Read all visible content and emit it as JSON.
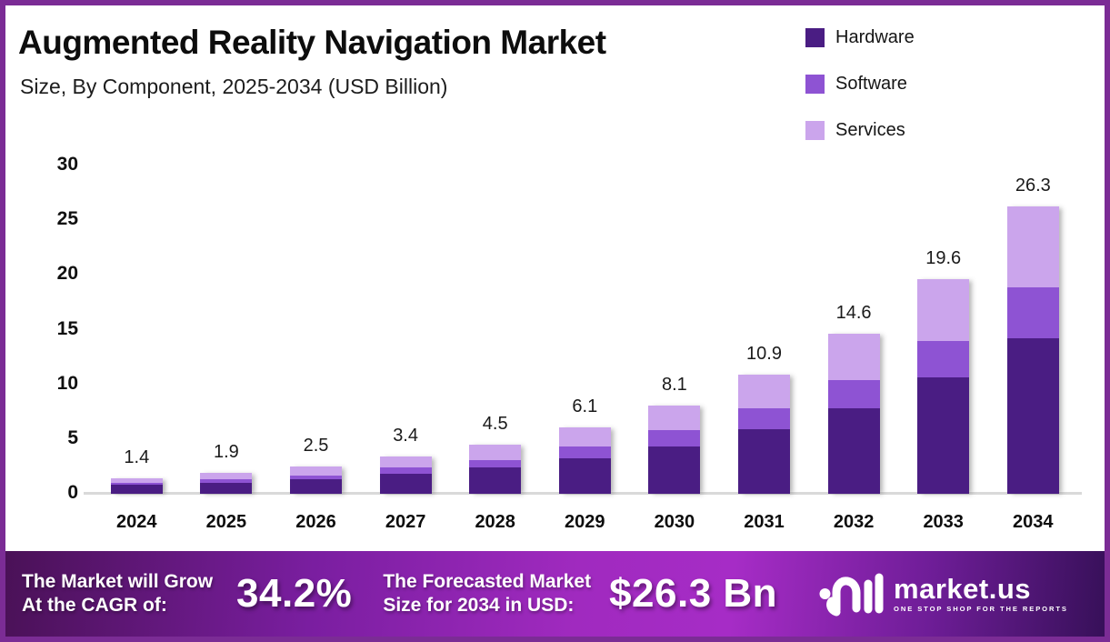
{
  "header": {
    "title": "Augmented Reality Navigation Market",
    "subtitle": "Size, By Component, 2025-2034 (USD Billion)"
  },
  "legend": [
    {
      "label": "Hardware",
      "color": "#4A1D83"
    },
    {
      "label": "Software",
      "color": "#8E53D3"
    },
    {
      "label": "Services",
      "color": "#CBA5EC"
    }
  ],
  "chart_data": {
    "type": "bar",
    "stacked": true,
    "title": "Augmented Reality Navigation Market Size, By Component, 2025-2034 (USD Billion)",
    "categories": [
      "2024",
      "2025",
      "2026",
      "2027",
      "2028",
      "2029",
      "2030",
      "2031",
      "2032",
      "2033",
      "2034"
    ],
    "series": [
      {
        "name": "Hardware",
        "color": "#4A1D83",
        "values": [
          0.8,
          1.0,
          1.3,
          1.8,
          2.4,
          3.2,
          4.3,
          5.9,
          7.8,
          10.6,
          14.2
        ]
      },
      {
        "name": "Software",
        "color": "#8E53D3",
        "values": [
          0.2,
          0.3,
          0.4,
          0.6,
          0.7,
          1.1,
          1.5,
          1.9,
          2.6,
          3.4,
          4.7
        ]
      },
      {
        "name": "Services",
        "color": "#CBA5EC",
        "values": [
          0.4,
          0.6,
          0.8,
          1.0,
          1.4,
          1.8,
          2.3,
          3.1,
          4.2,
          5.6,
          7.4
        ]
      }
    ],
    "totals": [
      1.4,
      1.9,
      2.5,
      3.4,
      4.5,
      6.1,
      8.1,
      10.9,
      14.6,
      19.6,
      26.3
    ],
    "xlabel": "",
    "ylabel": "",
    "yticks": [
      0,
      5,
      10,
      15,
      20,
      25,
      30
    ],
    "ylim": [
      0,
      30
    ],
    "grid": false,
    "legend_position": "top-right"
  },
  "footer": {
    "cagr_label_line1": "The Market will Grow",
    "cagr_label_line2": "At the CAGR of:",
    "cagr_value": "34.2%",
    "forecast_label_line1": "The Forecasted Market",
    "forecast_label_line2": "Size for 2034 in USD:",
    "forecast_value": "$26.3 Bn",
    "brand": {
      "name": "market.us",
      "tagline": "ONE STOP SHOP FOR THE REPORTS"
    }
  },
  "colors": {
    "frame": "#7B2C95",
    "baseline": "#D9D9D9"
  }
}
